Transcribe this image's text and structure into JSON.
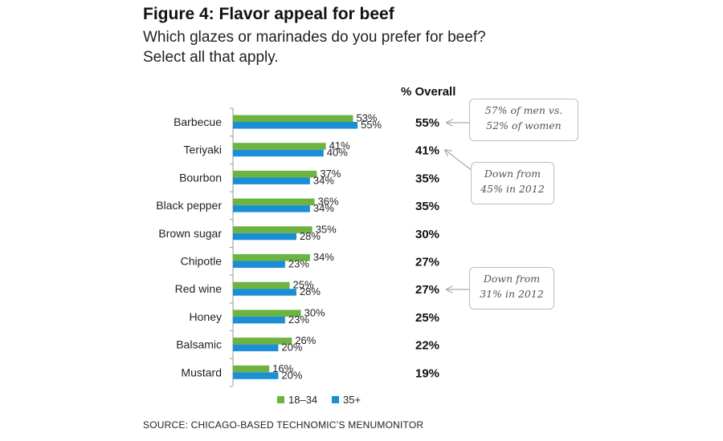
{
  "title": "Figure 4: Flavor appeal for beef",
  "subtitle_line1": "Which glazes or marinades do you prefer for beef?",
  "subtitle_line2": "Select all that apply.",
  "overall_header": "% Overall",
  "source": "SOURCE: CHICAGO-BASED TECHNOMIC’S MENUMONITOR",
  "colors": {
    "green": "#6db33f",
    "blue": "#1a8fd6"
  },
  "callouts": {
    "barbecue": [
      "57% of men vs.",
      "52% of women"
    ],
    "teriyaki": [
      "Down from",
      "45% in 2012"
    ],
    "red_wine": [
      "Down from",
      "31% in 2012"
    ]
  },
  "chart_data": {
    "type": "bar",
    "orientation": "horizontal",
    "categories": [
      "Barbecue",
      "Teriyaki",
      "Bourbon",
      "Black pepper",
      "Brown sugar",
      "Chipotle",
      "Red wine",
      "Honey",
      "Balsamic",
      "Mustard"
    ],
    "series": [
      {
        "name": "18–34",
        "color": "#6db33f",
        "values": [
          53,
          41,
          37,
          36,
          35,
          34,
          25,
          30,
          26,
          16
        ]
      },
      {
        "name": "35+",
        "color": "#1a8fd6",
        "values": [
          55,
          40,
          34,
          34,
          28,
          23,
          28,
          23,
          20,
          20
        ]
      }
    ],
    "overall": [
      55,
      41,
      35,
      35,
      30,
      27,
      27,
      25,
      22,
      19
    ],
    "value_suffix": "%",
    "xlim": [
      0,
      60
    ],
    "grid": false,
    "legend": "bottom"
  }
}
